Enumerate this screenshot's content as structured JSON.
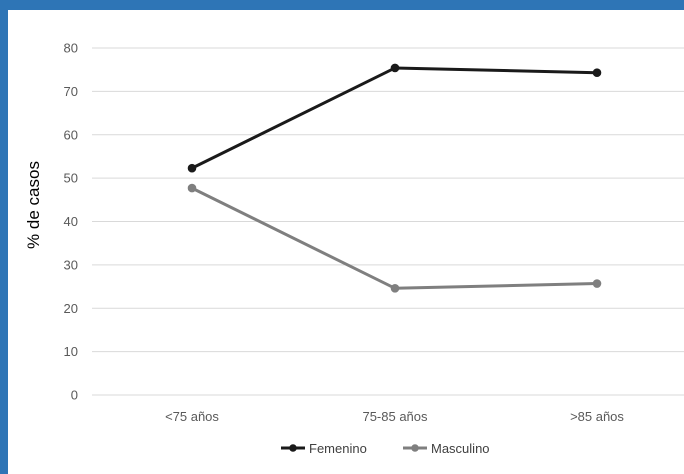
{
  "chart_data": {
    "type": "line",
    "categories": [
      "<75 años",
      "75-85 años",
      ">85 años"
    ],
    "series": [
      {
        "name": "Femenino",
        "values": [
          52.3,
          75.4,
          74.3
        ],
        "color": "#1a1a1a"
      },
      {
        "name": "Masculino",
        "values": [
          47.7,
          24.6,
          25.7
        ],
        "color": "#7f7f7f"
      }
    ],
    "ylabel": "% de casos",
    "xlabel": "",
    "ylim": [
      0,
      80
    ],
    "yticks": [
      0,
      10,
      20,
      30,
      40,
      50,
      60,
      70,
      80
    ],
    "grid": true,
    "legend_position": "bottom"
  },
  "colors": {
    "frame": "#2e75b6",
    "gridline": "#d9d9d9"
  }
}
